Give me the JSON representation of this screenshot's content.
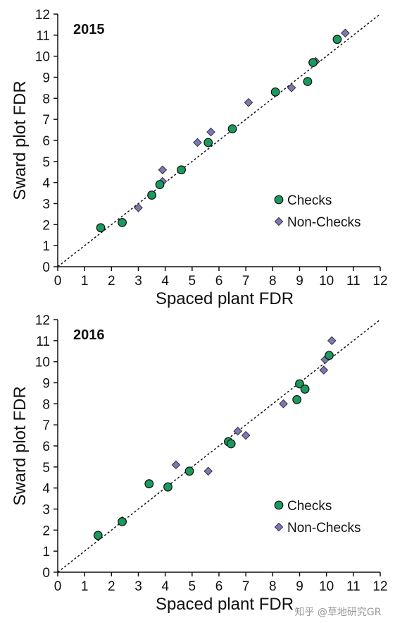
{
  "chart_data": [
    {
      "type": "scatter",
      "title": "2015",
      "xlabel": "Spaced plant FDR",
      "ylabel": "Sward plot FDR",
      "xlim": [
        0,
        12
      ],
      "ylim": [
        0,
        12
      ],
      "xticks": [
        "0",
        "1",
        "2",
        "3",
        "4",
        "5",
        "6",
        "7",
        "8",
        "9",
        "10",
        "11",
        "12"
      ],
      "yticks": [
        "0",
        "1",
        "2",
        "3",
        "4",
        "5",
        "6",
        "7",
        "8",
        "9",
        "10",
        "11",
        "12"
      ],
      "reference_line": "1:1 dashed",
      "legend_position": "right-middle",
      "series": [
        {
          "name": "Checks",
          "marker": "circle",
          "color": "#1a9a5c",
          "points": [
            [
              1.6,
              1.85
            ],
            [
              2.4,
              2.1
            ],
            [
              3.5,
              3.4
            ],
            [
              3.8,
              3.9
            ],
            [
              4.6,
              4.6
            ],
            [
              5.6,
              5.9
            ],
            [
              6.5,
              6.55
            ],
            [
              8.1,
              8.3
            ],
            [
              9.3,
              8.8
            ],
            [
              9.5,
              9.7
            ],
            [
              10.4,
              10.8
            ]
          ]
        },
        {
          "name": "Non-Checks",
          "marker": "diamond",
          "color": "#7a78b8",
          "points": [
            [
              3.0,
              2.8
            ],
            [
              3.9,
              4.05
            ],
            [
              3.9,
              4.6
            ],
            [
              5.2,
              5.9
            ],
            [
              5.7,
              6.4
            ],
            [
              7.1,
              7.8
            ],
            [
              8.7,
              8.5
            ],
            [
              9.6,
              9.75
            ],
            [
              10.7,
              11.1
            ]
          ]
        }
      ]
    },
    {
      "type": "scatter",
      "title": "2016",
      "xlabel": "Spaced plant FDR",
      "ylabel": "Sward plot FDR",
      "xlim": [
        0,
        12
      ],
      "ylim": [
        0,
        12
      ],
      "xticks": [
        "0",
        "1",
        "2",
        "3",
        "4",
        "5",
        "6",
        "7",
        "8",
        "9",
        "10",
        "11",
        "12"
      ],
      "yticks": [
        "0",
        "1",
        "2",
        "3",
        "4",
        "5",
        "6",
        "7",
        "8",
        "9",
        "10",
        "11",
        "12"
      ],
      "reference_line": "1:1 dashed",
      "legend_position": "bottom-right",
      "series": [
        {
          "name": "Checks",
          "marker": "circle",
          "color": "#1a9a5c",
          "points": [
            [
              1.5,
              1.75
            ],
            [
              2.4,
              2.4
            ],
            [
              3.4,
              4.2
            ],
            [
              4.1,
              4.05
            ],
            [
              4.9,
              4.8
            ],
            [
              6.35,
              6.2
            ],
            [
              6.45,
              6.1
            ],
            [
              8.9,
              8.2
            ],
            [
              9.0,
              8.95
            ],
            [
              9.2,
              8.7
            ],
            [
              10.1,
              10.3
            ]
          ]
        },
        {
          "name": "Non-Checks",
          "marker": "diamond",
          "color": "#7a78b8",
          "points": [
            [
              2.4,
              2.45
            ],
            [
              4.4,
              5.1
            ],
            [
              5.6,
              4.8
            ],
            [
              6.7,
              6.7
            ],
            [
              7.0,
              6.5
            ],
            [
              8.4,
              8.0
            ],
            [
              9.9,
              9.6
            ],
            [
              9.95,
              10.1
            ],
            [
              10.2,
              11.0
            ]
          ]
        }
      ]
    }
  ],
  "watermark": "知乎 @草地研究GR"
}
